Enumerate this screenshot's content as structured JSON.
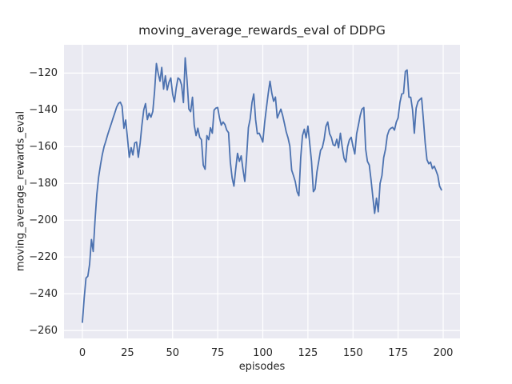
{
  "figure": {
    "background": "#ffffff"
  },
  "chart_data": {
    "type": "line",
    "title": "moving_average_rewards_eval of DDPG",
    "xlabel": "episodes",
    "ylabel": "moving_average_rewards_eval",
    "legend": "none",
    "grid": true,
    "style": "seaborn-darkgrid",
    "axes_background": "#eaeaf2",
    "grid_color": "#ffffff",
    "line_color": "#4c72b0",
    "text_color": "#262626",
    "x_ticks": [
      0,
      25,
      50,
      75,
      100,
      125,
      150,
      175,
      200
    ],
    "y_ticks": [
      -120,
      -140,
      -160,
      -180,
      -200,
      -220,
      -240,
      -260
    ],
    "xlim": [
      -10.2,
      209.3
    ],
    "ylim": [
      -264.3,
      -104.6
    ],
    "x_start": 0,
    "x_step": 1,
    "series": [
      {
        "name": "moving_average_rewards_eval",
        "values": [
          -255.5,
          -242.0,
          -231.5,
          -230.5,
          -224.0,
          -210.5,
          -217.0,
          -200.0,
          -186.0,
          -176.5,
          -170.0,
          -164.5,
          -160.0,
          -157.0,
          -153.5,
          -150.5,
          -147.5,
          -144.5,
          -141.5,
          -138.5,
          -136.5,
          -135.8,
          -138.0,
          -150.0,
          -145.5,
          -155.5,
          -165.8,
          -160.5,
          -164.5,
          -158.0,
          -157.5,
          -165.8,
          -158.0,
          -148.3,
          -140.0,
          -136.6,
          -145.3,
          -141.8,
          -144.0,
          -140.9,
          -130.0,
          -114.8,
          -120.0,
          -124.4,
          -116.9,
          -128.7,
          -121.5,
          -129.2,
          -125.0,
          -122.6,
          -131.4,
          -135.7,
          -128.0,
          -122.6,
          -123.5,
          -126.5,
          -136.0,
          -111.7,
          -124.0,
          -139.6,
          -141.0,
          -133.1,
          -148.3,
          -154.0,
          -150.0,
          -154.9,
          -156.2,
          -170.1,
          -172.3,
          -154.0,
          -156.2,
          -149.7,
          -152.7,
          -140.1,
          -139.0,
          -138.7,
          -144.4,
          -148.3,
          -146.6,
          -148.0,
          -151.0,
          -152.4,
          -168.4,
          -177.1,
          -181.5,
          -172.0,
          -163.6,
          -168.0,
          -165.0,
          -172.3,
          -178.9,
          -166.0,
          -149.7,
          -145.0,
          -136.0,
          -131.3,
          -145.3,
          -153.0,
          -152.7,
          -155.0,
          -157.5,
          -147.0,
          -139.0,
          -131.0,
          -124.4,
          -131.0,
          -135.3,
          -133.0,
          -144.4,
          -142.0,
          -139.6,
          -143.0,
          -147.5,
          -152.0,
          -155.3,
          -159.7,
          -172.8,
          -175.8,
          -179.0,
          -184.5,
          -186.7,
          -166.0,
          -154.0,
          -150.5,
          -155.3,
          -148.8,
          -158.0,
          -168.0,
          -184.5,
          -183.0,
          -173.6,
          -168.0,
          -162.0,
          -160.5,
          -156.0,
          -149.0,
          -146.6,
          -153.0,
          -155.0,
          -159.0,
          -159.5,
          -156.0,
          -160.6,
          -152.7,
          -160.0,
          -166.2,
          -168.4,
          -160.0,
          -156.2,
          -154.9,
          -160.0,
          -164.0,
          -153.0,
          -148.3,
          -143.0,
          -139.6,
          -138.7,
          -161.4,
          -168.0,
          -170.0,
          -178.0,
          -187.6,
          -196.3,
          -188.0,
          -195.4,
          -180.0,
          -175.8,
          -166.0,
          -161.4,
          -154.0,
          -151.0,
          -150.0,
          -149.5,
          -151.0,
          -146.6,
          -144.4,
          -136.0,
          -131.3,
          -131.0,
          -119.1,
          -118.3,
          -133.1,
          -133.1,
          -140.0,
          -152.7,
          -139.0,
          -135.5,
          -134.4,
          -133.5,
          -145.0,
          -158.0,
          -167.1,
          -169.3,
          -168.4,
          -171.9,
          -170.6,
          -173.0,
          -175.8,
          -181.5,
          -183.5
        ]
      }
    ]
  }
}
